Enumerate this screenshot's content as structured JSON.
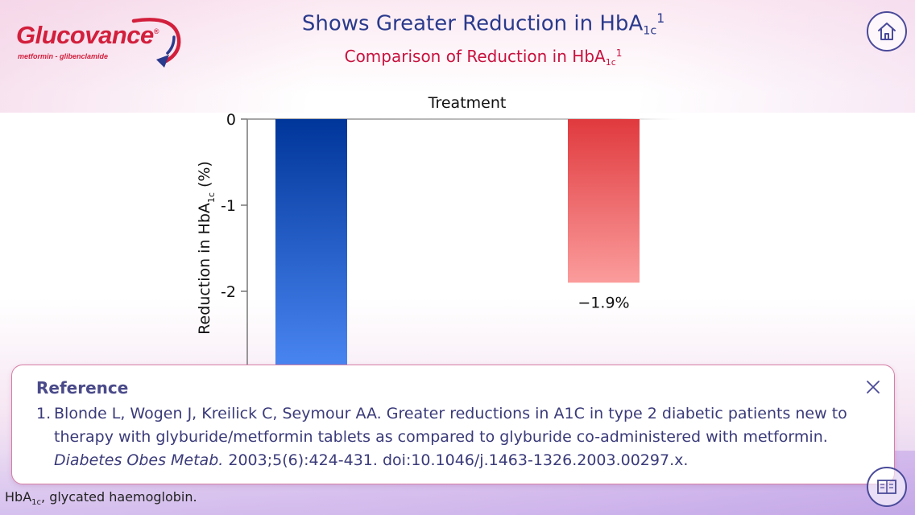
{
  "brand": {
    "name": "Glucovance",
    "registered": "®",
    "tagline": "metformin - glibenclamide",
    "color": "#d21f3c"
  },
  "header": {
    "title_prefix": "Shows Greater Reduction in HbA",
    "title_sub": "1c",
    "title_ref": "1",
    "subtitle_prefix": "Comparison of Reduction in HbA",
    "subtitle_sub": "1c",
    "subtitle_ref": "1"
  },
  "nav": {
    "home_icon": "home-icon",
    "references_icon": "book-icon"
  },
  "chart_data": {
    "type": "bar",
    "title": "Treatment",
    "ylabel_prefix": "Reduction in HbA",
    "ylabel_sub": "1c",
    "ylabel_suffix": " (%)",
    "yticks": [
      "0",
      "-1",
      "-2"
    ],
    "ylim": [
      -3,
      0
    ],
    "series": [
      {
        "values": [
          -2.9
        ],
        "color_top": "#00369a",
        "color_bottom": "#4a86f2"
      },
      {
        "values": [
          -1.9
        ],
        "color_top": "#e03a3e",
        "color_bottom": "#fb9c9c",
        "value_label": "−1.9%"
      }
    ]
  },
  "reference": {
    "heading": "Reference",
    "close_icon": "close-icon",
    "items": [
      {
        "number": "1.",
        "authors_title": "Blonde L, Wogen J, Kreilick C, Seymour AA. Greater reductions in A1C in type 2 diabetic patients new to therapy with glyburide/metformin tablets as compared to glyburide co-administered with metformin. ",
        "journal": "Diabetes Obes Metab.",
        "citation": " 2003;5(6):424-431. doi:10.1046/j.1463-1326.2003.00297.x."
      }
    ]
  },
  "footnote": {
    "prefix": "HbA",
    "sub": "1c",
    "suffix": ", glycated haemoglobin."
  }
}
